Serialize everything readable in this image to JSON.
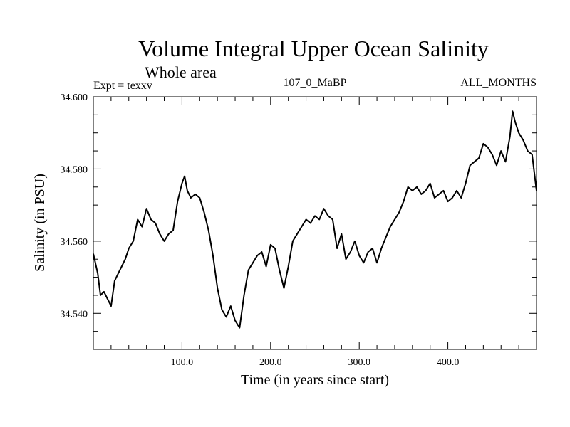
{
  "chart_data": {
    "type": "line",
    "title": "Volume Integral Upper Ocean Salinity",
    "subtitle": "Whole area",
    "header_left": "Expt = texxv",
    "header_center": "107_0_MaBP",
    "header_right": "ALL_MONTHS",
    "xlabel": "Time (in years since start)",
    "ylabel": "Salinity (in PSU)",
    "xlim": [
      0,
      500
    ],
    "ylim": [
      34.53,
      34.6
    ],
    "x_ticks": [
      100,
      200,
      300,
      400
    ],
    "x_tick_labels": [
      "100.0",
      "200.0",
      "300.0",
      "400.0"
    ],
    "y_ticks": [
      34.54,
      34.56,
      34.58,
      34.6
    ],
    "y_tick_labels": [
      "34.540",
      "34.560",
      "34.580",
      "34.600"
    ],
    "series": [
      {
        "name": "salinity",
        "color": "#000000",
        "x": [
          0,
          5,
          8,
          12,
          16,
          20,
          24,
          28,
          32,
          36,
          40,
          45,
          50,
          55,
          60,
          65,
          70,
          75,
          80,
          85,
          90,
          95,
          100,
          103,
          106,
          110,
          115,
          120,
          125,
          130,
          135,
          140,
          145,
          150,
          155,
          160,
          165,
          170,
          175,
          180,
          185,
          190,
          195,
          200,
          205,
          210,
          215,
          220,
          225,
          230,
          235,
          240,
          245,
          250,
          255,
          260,
          265,
          270,
          275,
          280,
          285,
          290,
          295,
          300,
          305,
          310,
          315,
          320,
          325,
          330,
          335,
          340,
          345,
          350,
          355,
          360,
          365,
          370,
          375,
          380,
          385,
          390,
          395,
          400,
          405,
          410,
          415,
          420,
          425,
          430,
          435,
          440,
          445,
          450,
          455,
          460,
          465,
          470,
          473,
          476,
          480,
          485,
          490,
          495,
          500
        ],
        "values": [
          34.5565,
          34.551,
          34.545,
          34.546,
          34.544,
          34.542,
          34.549,
          34.551,
          34.553,
          34.555,
          34.558,
          34.56,
          34.566,
          34.564,
          34.569,
          34.566,
          34.565,
          34.562,
          34.56,
          34.562,
          34.563,
          34.571,
          34.576,
          34.578,
          34.574,
          34.572,
          34.573,
          34.572,
          34.568,
          34.563,
          34.556,
          34.547,
          34.541,
          34.539,
          34.542,
          34.538,
          34.536,
          34.545,
          34.552,
          34.554,
          34.556,
          34.557,
          34.553,
          34.559,
          34.558,
          34.552,
          34.547,
          34.553,
          34.56,
          34.562,
          34.564,
          34.566,
          34.565,
          34.567,
          34.566,
          34.569,
          34.567,
          34.566,
          34.558,
          34.562,
          34.555,
          34.557,
          34.56,
          34.556,
          34.554,
          34.557,
          34.558,
          34.554,
          34.558,
          34.561,
          34.564,
          34.566,
          34.568,
          34.571,
          34.575,
          34.574,
          34.575,
          34.573,
          34.574,
          34.576,
          34.572,
          34.573,
          34.574,
          34.571,
          34.572,
          34.574,
          34.572,
          34.576,
          34.581,
          34.582,
          34.583,
          34.587,
          34.586,
          34.584,
          34.581,
          34.585,
          34.582,
          34.589,
          34.596,
          34.593,
          34.59,
          34.588,
          34.585,
          34.584,
          34.574
        ]
      }
    ]
  }
}
